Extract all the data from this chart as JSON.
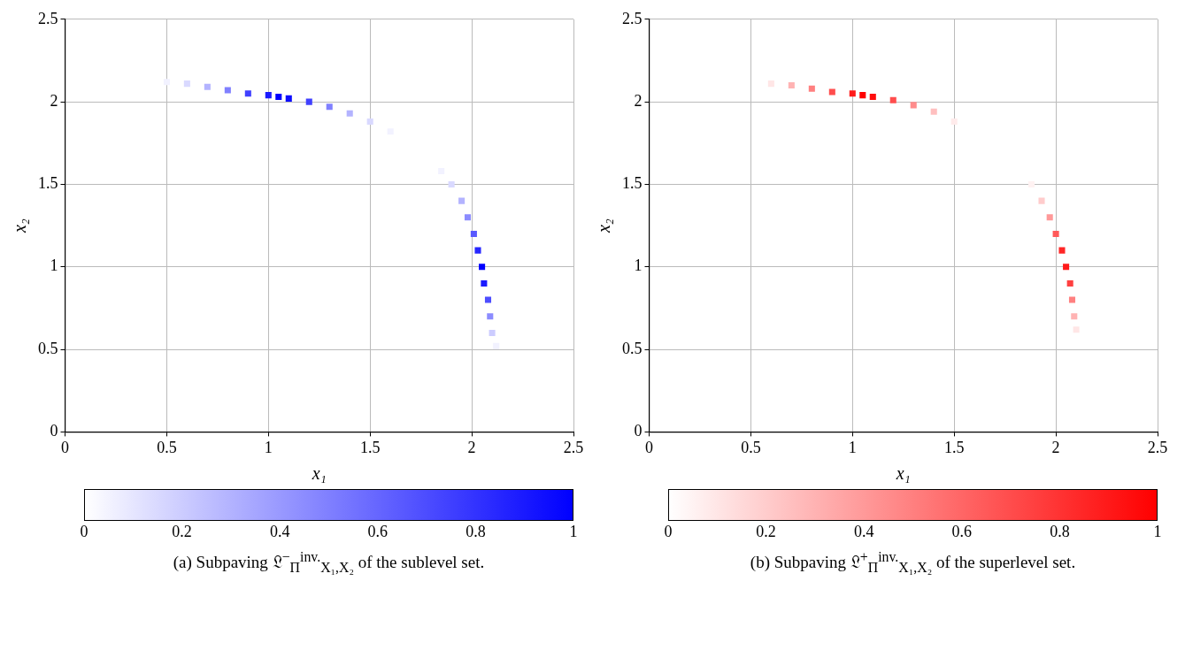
{
  "chart_data": [
    {
      "type": "scatter",
      "xlim": [
        0,
        2.5
      ],
      "ylim": [
        0,
        2.5
      ],
      "xticks": [
        0,
        0.5,
        1,
        1.5,
        2,
        2.5
      ],
      "yticks": [
        0,
        0.5,
        1,
        1.5,
        2,
        2.5
      ],
      "xlabel": "x₁",
      "ylabel": "x₂",
      "grid": true,
      "marker": "square",
      "clim": [
        0,
        1
      ],
      "cticks": [
        0,
        0.2,
        0.4,
        0.6,
        0.8,
        1
      ],
      "annotations": [
        "(a) Subpaving 𝔏$^{−}$$_{Π}$$^{inv.}$$_{X₁,X₂}$ of the sublevel set."
      ],
      "series": [
        {
          "x": [
            0.5,
            0.6,
            0.7,
            0.8,
            0.9,
            1.0,
            1.05,
            1.1,
            1.2,
            1.3,
            1.4,
            1.5,
            1.6,
            1.85,
            1.9,
            1.95,
            1.98,
            2.01,
            2.03,
            2.05,
            2.06,
            2.08,
            2.09,
            2.1,
            2.12
          ],
          "values": [
            2.12,
            2.11,
            2.09,
            2.07,
            2.05,
            2.04,
            2.03,
            2.02,
            2.0,
            1.97,
            1.93,
            1.88,
            1.82,
            1.58,
            1.5,
            1.4,
            1.3,
            1.2,
            1.1,
            1.0,
            0.9,
            0.8,
            0.7,
            0.6,
            0.52
          ],
          "cvalues": [
            0.05,
            0.15,
            0.3,
            0.5,
            0.75,
            0.9,
            1,
            0.95,
            0.75,
            0.5,
            0.3,
            0.15,
            0.05,
            0.05,
            0.15,
            0.3,
            0.45,
            0.65,
            0.85,
            1,
            0.9,
            0.7,
            0.45,
            0.2,
            0.05
          ],
          "colors": [
            "#f2f2ff",
            "#d9d9ff",
            "#b3b3ff",
            "#8080ff",
            "#4040ff",
            "#1a1aff",
            "#0000ff",
            "#0d0dff",
            "#4040ff",
            "#8080ff",
            "#b3b3ff",
            "#d9d9ff",
            "#f2f2ff",
            "#f2f2ff",
            "#d9d9ff",
            "#b3b3ff",
            "#8c8cff",
            "#5959ff",
            "#2626ff",
            "#0000ff",
            "#1a1aff",
            "#4d4dff",
            "#8c8cff",
            "#ccccff",
            "#f2f2ff"
          ]
        }
      ]
    },
    {
      "type": "scatter",
      "xlim": [
        0,
        2.5
      ],
      "ylim": [
        0,
        2.5
      ],
      "xticks": [
        0,
        0.5,
        1,
        1.5,
        2,
        2.5
      ],
      "yticks": [
        0,
        0.5,
        1,
        1.5,
        2,
        2.5
      ],
      "xlabel": "x₁",
      "ylabel": "x₂",
      "grid": true,
      "marker": "square",
      "clim": [
        0,
        1
      ],
      "cticks": [
        0,
        0.2,
        0.4,
        0.6,
        0.8,
        1
      ],
      "annotations": [
        "(b) Subpaving 𝔏$^{+}$$_{Π}$$^{inv.}$$_{X₁,X₂}$ of the superlevel set."
      ],
      "series": [
        {
          "x": [
            0.6,
            0.7,
            0.8,
            0.9,
            1.0,
            1.05,
            1.1,
            1.2,
            1.3,
            1.4,
            1.5,
            1.88,
            1.93,
            1.97,
            2.0,
            2.03,
            2.05,
            2.07,
            2.08,
            2.09,
            2.1
          ],
          "values": [
            2.11,
            2.1,
            2.08,
            2.06,
            2.05,
            2.04,
            2.03,
            2.01,
            1.98,
            1.94,
            1.88,
            1.5,
            1.4,
            1.3,
            1.2,
            1.1,
            1.0,
            0.9,
            0.8,
            0.7,
            0.62
          ],
          "cvalues": [
            0.1,
            0.3,
            0.5,
            0.7,
            0.9,
            1,
            0.95,
            0.7,
            0.45,
            0.25,
            0.08,
            0.05,
            0.2,
            0.4,
            0.65,
            0.85,
            0.9,
            0.75,
            0.5,
            0.3,
            0.1
          ],
          "colors": [
            "#ffe6e6",
            "#ffb3b3",
            "#ff8080",
            "#ff4d4d",
            "#ff1a1a",
            "#ff0000",
            "#ff0d0d",
            "#ff4d4d",
            "#ff8c8c",
            "#ffbfbf",
            "#ffebeb",
            "#fff2f2",
            "#ffcccc",
            "#ff9999",
            "#ff5959",
            "#ff2626",
            "#ff1a1a",
            "#ff4040",
            "#ff8080",
            "#ffb3b3",
            "#ffe6e6"
          ]
        }
      ]
    }
  ]
}
